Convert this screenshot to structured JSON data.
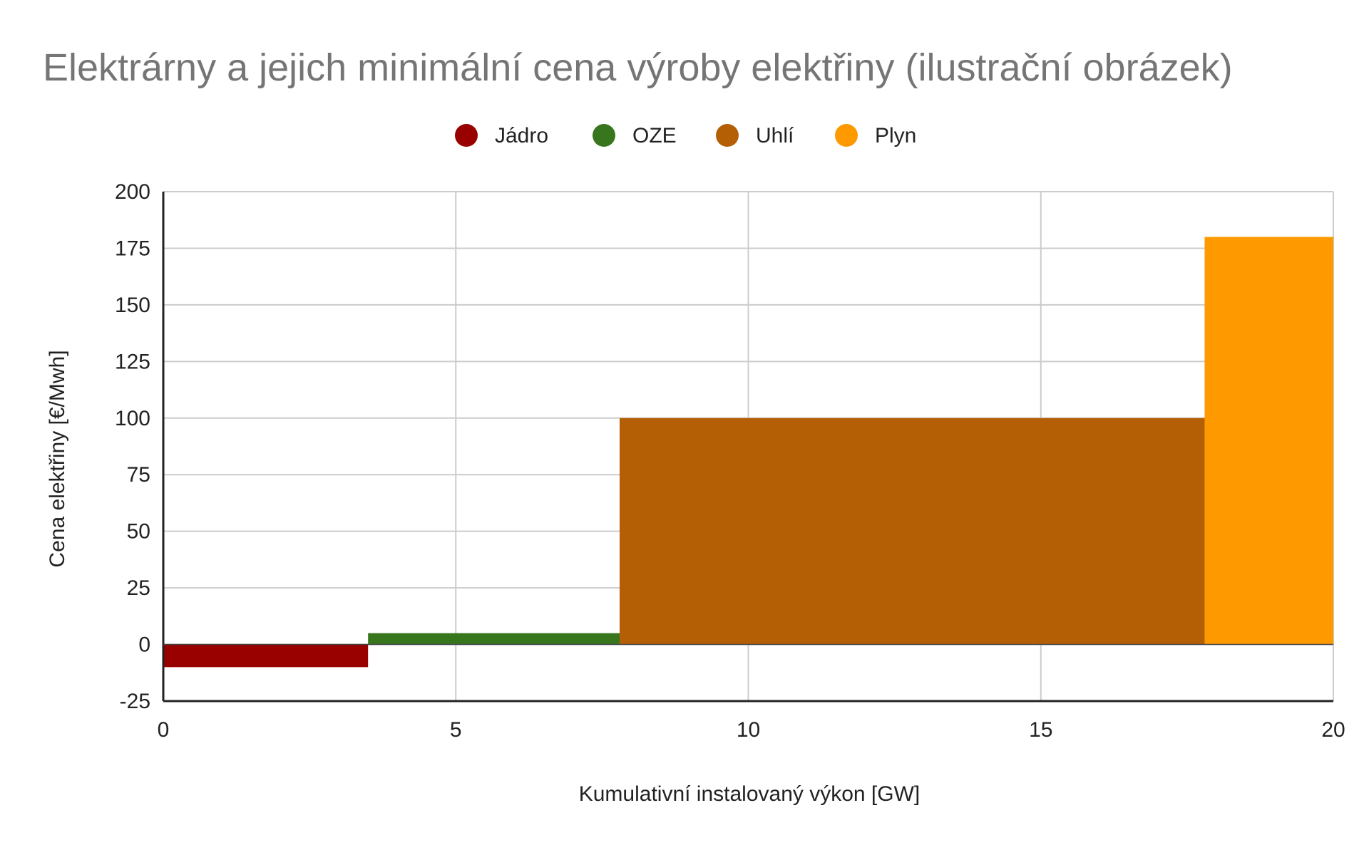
{
  "chart_data": {
    "type": "bar",
    "subtype": "variable-width step (merit order)",
    "title": "Elektrárny a jejich minimální cena výroby elektřiny (ilustrační obrázek)",
    "xlabel": "Kumulativní instalovaný výkon [GW]",
    "ylabel": "Cena elektřiny [€/Mwh]",
    "xlim": [
      0,
      20
    ],
    "ylim": [
      -25,
      200
    ],
    "xticks": [
      "0",
      "5",
      "10",
      "15",
      "20"
    ],
    "yticks": [
      "-25",
      "0",
      "25",
      "50",
      "75",
      "100",
      "125",
      "150",
      "175",
      "200"
    ],
    "grid": true,
    "legend_position": "top",
    "series": [
      {
        "name": "Jádro",
        "x_start": 0,
        "x_end": 3.5,
        "value": -10,
        "color": "#990000"
      },
      {
        "name": "OZE",
        "x_start": 3.5,
        "x_end": 7.8,
        "value": 5,
        "color": "#38761d"
      },
      {
        "name": "Uhlí",
        "x_start": 7.8,
        "x_end": 17.8,
        "value": 100,
        "color": "#b45f06"
      },
      {
        "name": "Plyn",
        "x_start": 17.8,
        "x_end": 20,
        "value": 180,
        "color": "#ff9900"
      }
    ],
    "colors": {
      "title": "#757575",
      "grid": "#cccccc",
      "axis": "#222222",
      "text": "#222222"
    }
  }
}
